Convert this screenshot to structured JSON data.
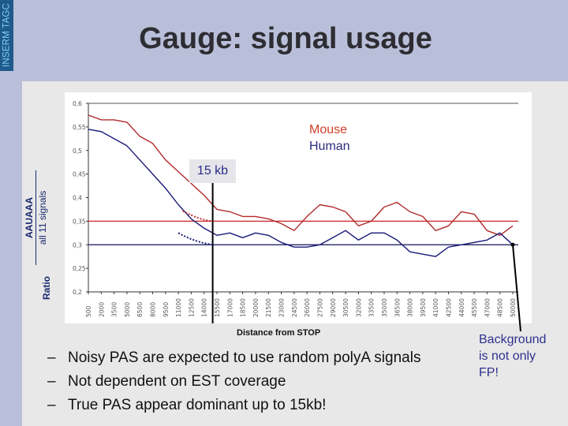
{
  "slide": {
    "side_label": "INSERM TAGC",
    "title": "Gauge: signal usage",
    "bullets": [
      {
        "marker": "–",
        "text": "Noisy PAS are expected to use random polyA signals"
      },
      {
        "marker": "–",
        "text": "Not dependent on EST coverage"
      },
      {
        "marker": "–",
        "text": "True PAS appear dominant up to 15kb!"
      }
    ],
    "annotation": [
      "Background",
      "is not only",
      "FP!"
    ],
    "colors": {
      "background": "#babfd9",
      "side_band": "#1f5a8c",
      "panel": "#e8e8e8",
      "mouse": "#b22a2a",
      "human": "#1a1a7a",
      "annotation": "#2f318e"
    }
  },
  "chart_data": {
    "type": "line",
    "title": "",
    "xlabel": "Distance from STOP",
    "ylabel": "Ratio AAUAAA / all 11 signals",
    "ylabel_parts": {
      "prefix": "Ratio",
      "numerator": "AAUAAA",
      "denominator": "all 11 signals"
    },
    "ylim": [
      0.2,
      0.6
    ],
    "yticks": [
      "0,6",
      "0,55",
      "0,5",
      "0,45",
      "0,4",
      "0,35",
      "0,3",
      "0,25",
      "0,2"
    ],
    "x": [
      500,
      2000,
      3500,
      5000,
      6500,
      8000,
      9500,
      11000,
      12500,
      14000,
      15500,
      17000,
      18500,
      20000,
      21500,
      23000,
      24500,
      26000,
      27500,
      29000,
      30500,
      32000,
      33500,
      35000,
      36500,
      38000,
      39500,
      41000,
      42500,
      44000,
      45500,
      47000,
      48500,
      50000
    ],
    "xticks": [
      "500",
      "2000",
      "3500",
      "5000",
      "6500",
      "8000",
      "9500",
      "11000",
      "12500",
      "14000",
      "15500",
      "17000",
      "18500",
      "20000",
      "21500",
      "23000",
      "24500",
      "26000",
      "27500",
      "29000",
      "30500",
      "32000",
      "33500",
      "35000",
      "36500",
      "38000",
      "39500",
      "41000",
      "42500",
      "44000",
      "45500",
      "47000",
      "48500",
      "50000"
    ],
    "series": [
      {
        "name": "Mouse",
        "color": "#b22a2a",
        "values": [
          0.575,
          0.565,
          0.565,
          0.56,
          0.53,
          0.515,
          0.48,
          0.455,
          0.43,
          0.405,
          0.375,
          0.37,
          0.36,
          0.36,
          0.355,
          0.345,
          0.33,
          0.36,
          0.385,
          0.38,
          0.37,
          0.34,
          0.35,
          0.38,
          0.39,
          0.37,
          0.36,
          0.33,
          0.34,
          0.37,
          0.365,
          0.33,
          0.32,
          0.34
        ]
      },
      {
        "name": "Human",
        "color": "#1a1a7a",
        "values": [
          0.545,
          0.54,
          0.525,
          0.51,
          0.48,
          0.45,
          0.42,
          0.385,
          0.355,
          0.335,
          0.32,
          0.325,
          0.315,
          0.325,
          0.32,
          0.305,
          0.295,
          0.295,
          0.3,
          0.315,
          0.33,
          0.31,
          0.325,
          0.325,
          0.31,
          0.285,
          0.28,
          0.275,
          0.295,
          0.3,
          0.305,
          0.31,
          0.325,
          0.3
        ]
      }
    ],
    "thresholds": [
      {
        "name": "Mouse background",
        "value": 0.35,
        "color": "#cc2222"
      },
      {
        "name": "Human background",
        "value": 0.3,
        "color": "#111155"
      }
    ],
    "annotations": [
      {
        "text": "15 kb",
        "x": 15000
      },
      {
        "text": "Background is not only FP!",
        "x": 50000
      }
    ],
    "legend": [
      "Mouse",
      "Human"
    ],
    "legend_position": "upper right",
    "grid": false
  }
}
